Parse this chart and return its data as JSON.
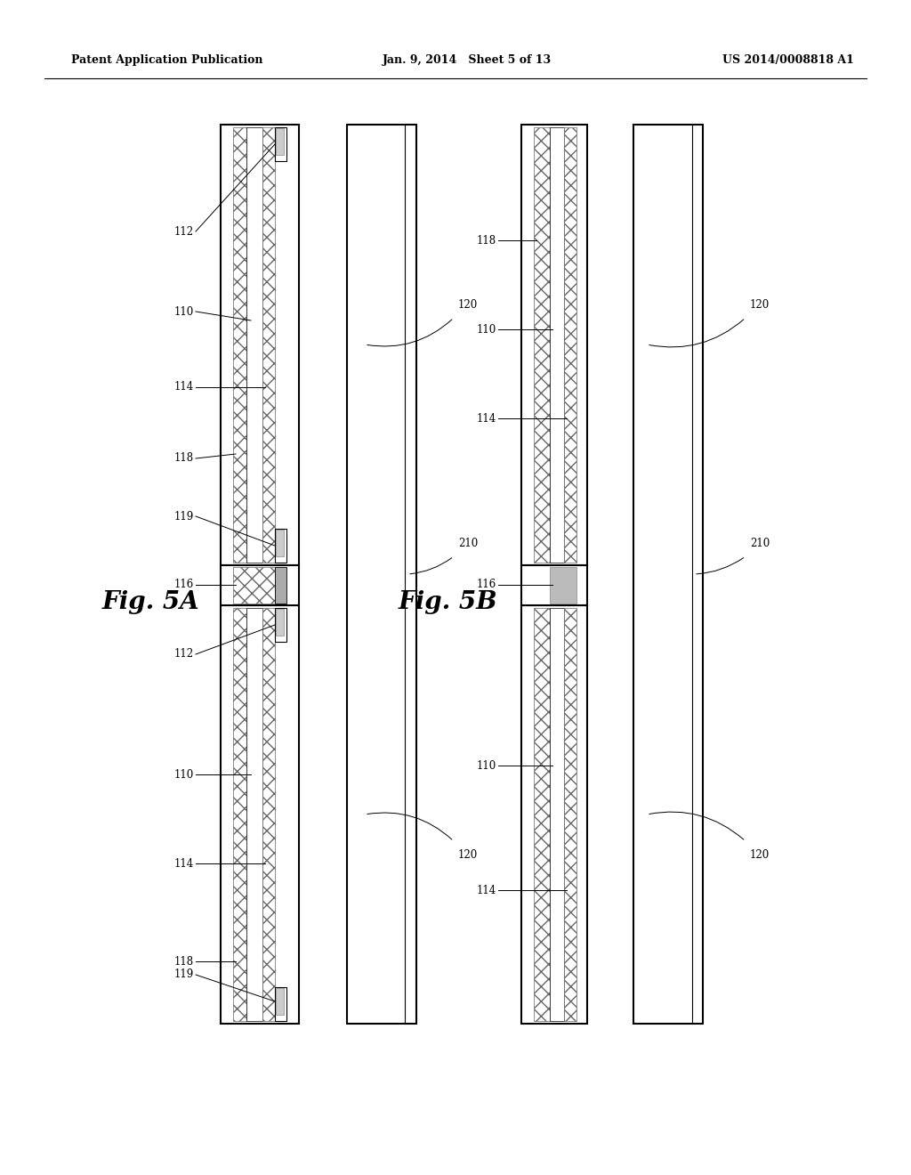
{
  "bg_color": "#ffffff",
  "header_left": "Patent Application Publication",
  "header_mid": "Jan. 9, 2014   Sheet 5 of 13",
  "header_right": "US 2014/0008818 A1",
  "fig_a_label": "Fig. 5A",
  "fig_b_label": "Fig. 5B"
}
